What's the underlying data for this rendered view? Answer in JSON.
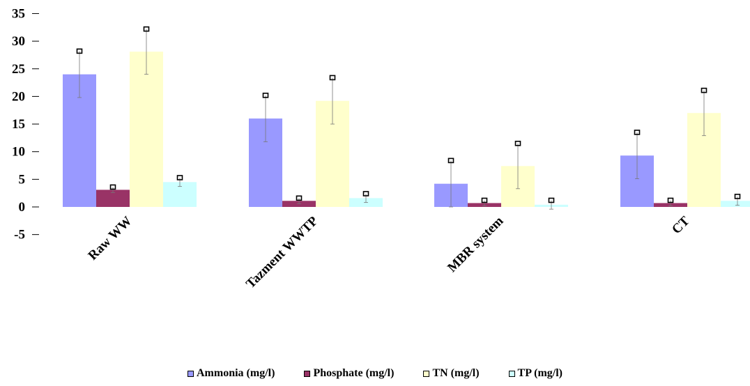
{
  "chart_data": {
    "type": "bar",
    "categories": [
      "Raw WW",
      "Tazment WWTP",
      "MBR system",
      "CT"
    ],
    "series": [
      {
        "name": "Ammonia (mg/l)",
        "color": "#9999ff",
        "values": [
          24,
          16,
          4.2,
          9.3
        ],
        "errors": [
          4.2,
          4.2,
          4.2,
          4.2
        ]
      },
      {
        "name": "Phosphate (mg/l)",
        "color": "#993366",
        "values": [
          3.1,
          1.1,
          0.7,
          0.7
        ],
        "errors": [
          0.5,
          0.5,
          0.5,
          0.5
        ]
      },
      {
        "name": "TN  (mg/l)",
        "color": "#ffffcc",
        "values": [
          28.1,
          19.2,
          7.4,
          17
        ],
        "errors": [
          4.1,
          4.2,
          4.1,
          4.1
        ]
      },
      {
        "name": "TP (mg/l)",
        "color": "#ccffff",
        "values": [
          4.5,
          1.6,
          0.4,
          1.1
        ],
        "errors": [
          0.8,
          0.8,
          0.8,
          0.8
        ]
      }
    ],
    "ylim": [
      -5,
      35
    ],
    "yticks": [
      -5,
      0,
      5,
      10,
      15,
      20,
      25,
      30,
      35
    ],
    "legend_position": "bottom",
    "grid": false
  }
}
